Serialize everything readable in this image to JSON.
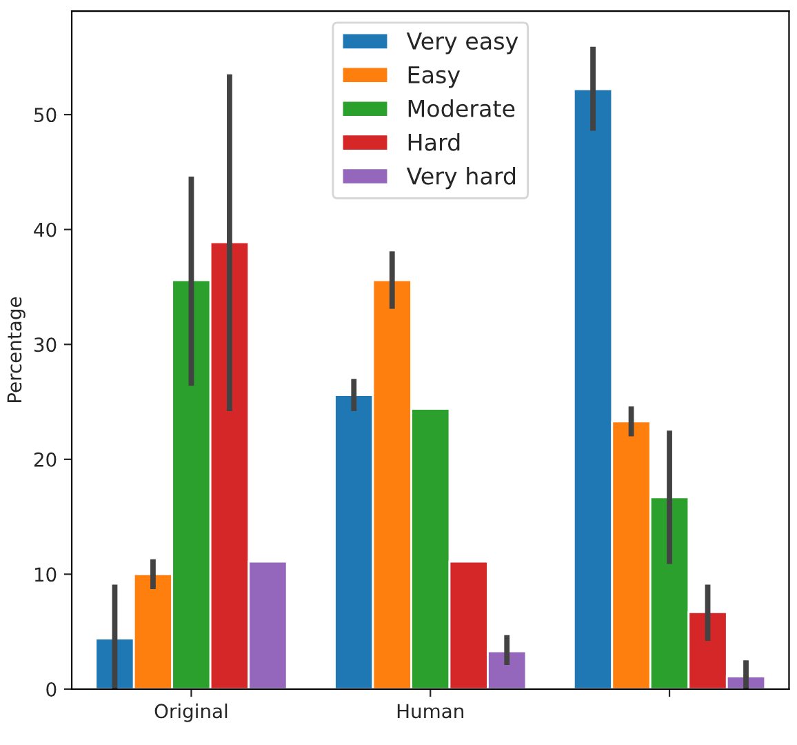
{
  "chart_data": {
    "type": "bar",
    "ylabel": "Percentage",
    "categories": [
      "Original",
      "Human",
      null
    ],
    "series": [
      {
        "name": "Very easy",
        "color": "#1f77b4",
        "values": [
          4.4,
          25.6,
          52.2
        ],
        "errors": [
          [
            0,
            9.1
          ],
          [
            24.2,
            27.0
          ],
          [
            48.6,
            55.9
          ]
        ]
      },
      {
        "name": "Easy",
        "color": "#ff7f0e",
        "values": [
          10.0,
          35.6,
          23.3
        ],
        "errors": [
          [
            8.7,
            11.3
          ],
          [
            33.1,
            38.1
          ],
          [
            22.0,
            24.6
          ]
        ]
      },
      {
        "name": "Moderate",
        "color": "#2ca02c",
        "values": [
          35.6,
          24.4,
          16.7
        ],
        "errors": [
          [
            26.4,
            44.6
          ],
          null,
          [
            10.9,
            22.5
          ]
        ]
      },
      {
        "name": "Hard",
        "color": "#d62728",
        "values": [
          38.9,
          11.1,
          6.7
        ],
        "errors": [
          [
            24.2,
            53.5
          ],
          null,
          [
            4.2,
            9.1
          ]
        ]
      },
      {
        "name": "Very hard",
        "color": "#9467bd",
        "values": [
          11.1,
          3.3,
          1.1
        ],
        "errors": [
          null,
          [
            2.1,
            4.7
          ],
          [
            0,
            2.5
          ]
        ]
      }
    ],
    "ylim": [
      0,
      59
    ],
    "yticks": [
      0,
      10,
      20,
      30,
      40,
      50
    ],
    "grid": false,
    "legend": "upper center"
  }
}
